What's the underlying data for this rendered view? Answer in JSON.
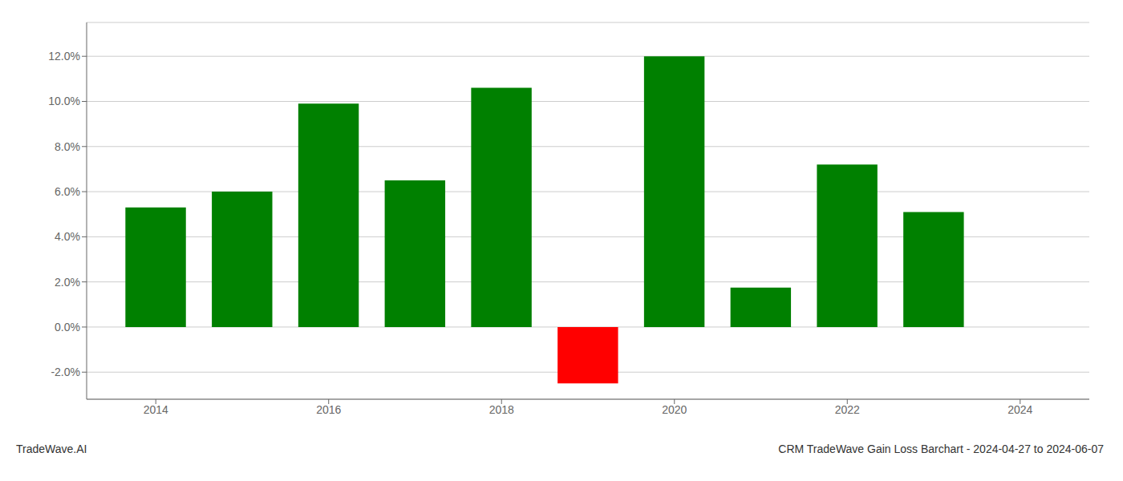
{
  "chart_data": {
    "type": "bar",
    "title": "CRM TradeWave Gain Loss Barchart - 2024-04-27 to 2024-06-07",
    "annotations": [
      "TradeWave.AI"
    ],
    "x": [
      2014,
      2015,
      2016,
      2017,
      2018,
      2019,
      2020,
      2021,
      2022,
      2023
    ],
    "values": [
      0.053,
      0.06,
      0.099,
      0.065,
      0.106,
      -0.025,
      0.12,
      0.0175,
      0.072,
      0.051
    ],
    "colors": [
      "#008000",
      "#008000",
      "#008000",
      "#008000",
      "#008000",
      "#ff0000",
      "#008000",
      "#008000",
      "#008000",
      "#008000"
    ],
    "xlim": [
      2013.2,
      2024.8
    ],
    "xticks": [
      2014,
      2016,
      2018,
      2020,
      2022,
      2024
    ],
    "ylim": [
      -0.032,
      0.135
    ],
    "yticks": [
      {
        "value": -0.02,
        "label": "-2.0%"
      },
      {
        "value": 0.0,
        "label": "0.0%"
      },
      {
        "value": 0.02,
        "label": "2.0%"
      },
      {
        "value": 0.04,
        "label": "4.0%"
      },
      {
        "value": 0.06,
        "label": "6.0%"
      },
      {
        "value": 0.08,
        "label": "8.0%"
      },
      {
        "value": 0.1,
        "label": "10.0%"
      },
      {
        "value": 0.12,
        "label": "12.0%"
      }
    ],
    "grid": true
  }
}
